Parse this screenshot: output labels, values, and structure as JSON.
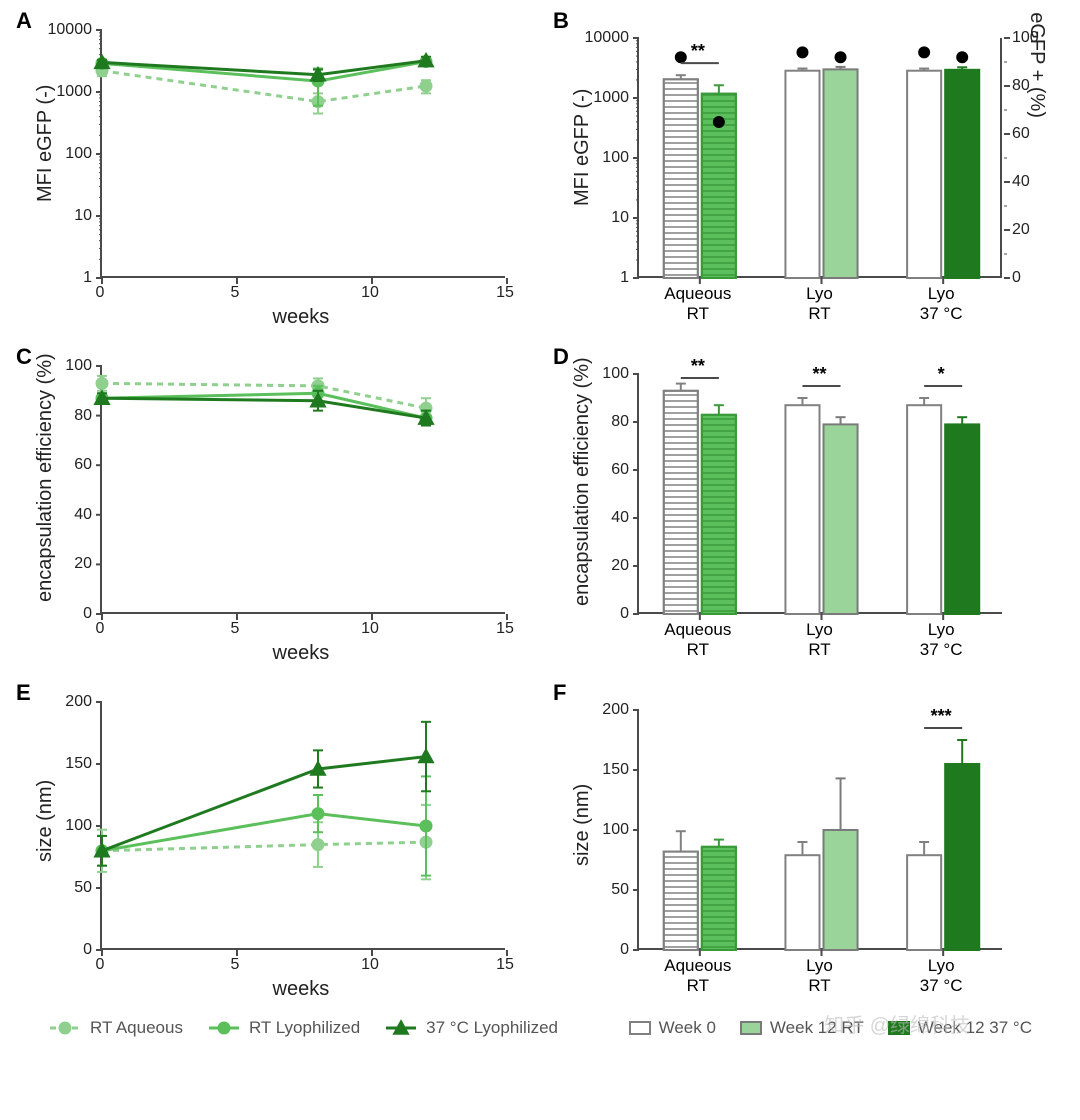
{
  "meta": {
    "background_color": "#ffffff",
    "axis_color": "#4a4a4a",
    "font_family": "Arial",
    "panel_label_fontsize": 22,
    "axis_label_fontsize": 20,
    "tick_fontsize": 16
  },
  "colors": {
    "rt_aqueous": "#8fd08f",
    "rt_lyophilized": "#5bbf5b",
    "lyo_37c": "#1f7a1f",
    "week0_outline": "#808080",
    "bar_border": "#7a7a7a"
  },
  "line_legend": {
    "items": [
      {
        "label": "RT Aqueous",
        "color": "#8fd08f",
        "marker": "circle",
        "dash": "6,5"
      },
      {
        "label": "RT Lyophilized",
        "color": "#5bbf5b",
        "marker": "circle",
        "dash": ""
      },
      {
        "label": "37 °C Lyophilized",
        "color": "#1f7a1f",
        "marker": "triangle",
        "dash": ""
      }
    ]
  },
  "bar_legend": {
    "items": [
      {
        "label": "Week 0",
        "fill": "none",
        "outline": "#808080",
        "hatched": false
      },
      {
        "label": "Week 12 RT",
        "fill": "#9bd49b",
        "outline": "#7a7a7a",
        "hatched": false
      },
      {
        "label": "Week 12 37 °C",
        "fill": "#1f7a1f",
        "outline": "#1f7a1f",
        "hatched": false
      }
    ]
  },
  "panelA": {
    "label": "A",
    "type": "line",
    "xlabel": "weeks",
    "ylabel": "MFI eGFP (-)",
    "xlim": [
      0,
      15
    ],
    "xticks": [
      0,
      5,
      10,
      15
    ],
    "yscale": "log",
    "ylim": [
      1,
      10000
    ],
    "yticks": [
      1,
      10,
      100,
      1000,
      10000
    ],
    "series": [
      {
        "name": "RT Aqueous",
        "color": "#8fd08f",
        "marker": "circle",
        "dash": "6,5",
        "x": [
          0,
          8,
          12
        ],
        "y": [
          2200,
          700,
          1250
        ],
        "err": [
          400,
          250,
          300
        ]
      },
      {
        "name": "RT Lyophilized",
        "color": "#5bbf5b",
        "marker": "circle",
        "dash": "",
        "x": [
          0,
          8,
          12
        ],
        "y": [
          2900,
          1500,
          3100
        ],
        "err": [
          350,
          900,
          400
        ]
      },
      {
        "name": "37 °C Lyophilized",
        "color": "#1f7a1f",
        "marker": "triangle",
        "dash": "",
        "x": [
          0,
          8,
          12
        ],
        "y": [
          3000,
          1900,
          3200
        ],
        "err": [
          300,
          400,
          500
        ]
      }
    ]
  },
  "panelB": {
    "label": "B",
    "type": "bar",
    "ylabel": "MFI eGFP (-)",
    "ylabel2": "eGFP + (%)",
    "yscale": "log",
    "ylim": [
      1,
      10000
    ],
    "yticks": [
      1,
      10,
      100,
      1000,
      10000
    ],
    "y2lim": [
      0,
      100
    ],
    "y2ticks": [
      0,
      20,
      40,
      60,
      80,
      100
    ],
    "y2_minor_step": 10,
    "groups": [
      "Aqueous\nRT",
      "Lyo\nRT",
      "Lyo\n37 °C"
    ],
    "bars_per_group": [
      [
        {
          "key": "week0",
          "fill": "none",
          "outline": "#808080",
          "hatched": true,
          "value": 2050,
          "err": 350
        },
        {
          "key": "aq12",
          "fill": "#5bbf5b",
          "outline": "#3a9a3a",
          "hatched": true,
          "value": 1180,
          "err": 450
        }
      ],
      [
        {
          "key": "week0",
          "fill": "none",
          "outline": "#808080",
          "hatched": false,
          "value": 2850,
          "err": 250
        },
        {
          "key": "rt12",
          "fill": "#9bd49b",
          "outline": "#7a7a7a",
          "hatched": false,
          "value": 3000,
          "err": 300
        }
      ],
      [
        {
          "key": "week0",
          "fill": "none",
          "outline": "#808080",
          "hatched": false,
          "value": 2850,
          "err": 250
        },
        {
          "key": "3712",
          "fill": "#1f7a1f",
          "outline": "#1f7a1f",
          "hatched": false,
          "value": 2950,
          "err": 300
        }
      ]
    ],
    "dots_pct": [
      [
        92,
        65
      ],
      [
        94,
        92
      ],
      [
        94,
        92
      ]
    ],
    "dot_color": "#000000",
    "significance": [
      {
        "group": 0,
        "label": "**"
      }
    ]
  },
  "panelC": {
    "label": "C",
    "type": "line",
    "xlabel": "weeks",
    "ylabel": "encapsulation efficiency (%)",
    "xlim": [
      0,
      15
    ],
    "xticks": [
      0,
      5,
      10,
      15
    ],
    "ylim": [
      0,
      100
    ],
    "yticks": [
      0,
      20,
      40,
      60,
      80,
      100
    ],
    "series": [
      {
        "name": "RT Aqueous",
        "color": "#8fd08f",
        "marker": "circle",
        "dash": "6,5",
        "x": [
          0,
          8,
          12
        ],
        "y": [
          93,
          92,
          83
        ],
        "err": [
          3,
          3,
          4
        ]
      },
      {
        "name": "RT Lyophilized",
        "color": "#5bbf5b",
        "marker": "circle",
        "dash": "",
        "x": [
          0,
          8,
          12
        ],
        "y": [
          87,
          89,
          79
        ],
        "err": [
          2,
          3,
          3
        ]
      },
      {
        "name": "37 °C Lyophilized",
        "color": "#1f7a1f",
        "marker": "triangle",
        "dash": "",
        "x": [
          0,
          8,
          12
        ],
        "y": [
          87,
          86,
          79
        ],
        "err": [
          2,
          4,
          3
        ]
      }
    ]
  },
  "panelD": {
    "label": "D",
    "type": "bar",
    "ylabel": "encapsulation efficiency (%)",
    "ylim": [
      0,
      100
    ],
    "yticks": [
      0,
      20,
      40,
      60,
      80,
      100
    ],
    "groups": [
      "Aqueous\nRT",
      "Lyo\nRT",
      "Lyo\n37 °C"
    ],
    "bars_per_group": [
      [
        {
          "fill": "none",
          "outline": "#808080",
          "hatched": true,
          "value": 93,
          "err": 3
        },
        {
          "fill": "#5bbf5b",
          "outline": "#3a9a3a",
          "hatched": true,
          "value": 83,
          "err": 4
        }
      ],
      [
        {
          "fill": "none",
          "outline": "#808080",
          "hatched": false,
          "value": 87,
          "err": 3
        },
        {
          "fill": "#9bd49b",
          "outline": "#7a7a7a",
          "hatched": false,
          "value": 79,
          "err": 3
        }
      ],
      [
        {
          "fill": "none",
          "outline": "#808080",
          "hatched": false,
          "value": 87,
          "err": 3
        },
        {
          "fill": "#1f7a1f",
          "outline": "#1f7a1f",
          "hatched": false,
          "value": 79,
          "err": 3
        }
      ]
    ],
    "significance": [
      {
        "group": 0,
        "label": "**"
      },
      {
        "group": 1,
        "label": "**"
      },
      {
        "group": 2,
        "label": "*"
      }
    ]
  },
  "panelE": {
    "label": "E",
    "type": "line",
    "xlabel": "weeks",
    "ylabel": "size (nm)",
    "xlim": [
      0,
      15
    ],
    "xticks": [
      0,
      5,
      10,
      15
    ],
    "ylim": [
      0,
      200
    ],
    "yticks": [
      0,
      50,
      100,
      150,
      200
    ],
    "series": [
      {
        "name": "RT Aqueous",
        "color": "#8fd08f",
        "marker": "circle",
        "dash": "6,5",
        "x": [
          0,
          8,
          12
        ],
        "y": [
          80,
          85,
          87
        ],
        "err": [
          17,
          18,
          30
        ]
      },
      {
        "name": "RT Lyophilized",
        "color": "#5bbf5b",
        "marker": "circle",
        "dash": "",
        "x": [
          0,
          8,
          12
        ],
        "y": [
          80,
          110,
          100
        ],
        "err": [
          12,
          15,
          40
        ]
      },
      {
        "name": "37 °C Lyophilized",
        "color": "#1f7a1f",
        "marker": "triangle",
        "dash": "",
        "x": [
          0,
          8,
          12
        ],
        "y": [
          80,
          146,
          156
        ],
        "err": [
          12,
          15,
          28
        ]
      }
    ]
  },
  "panelF": {
    "label": "F",
    "type": "bar",
    "ylabel": "size (nm)",
    "ylim": [
      0,
      200
    ],
    "yticks": [
      0,
      50,
      100,
      150,
      200
    ],
    "groups": [
      "Aqueous\nRT",
      "Lyo\nRT",
      "Lyo\n37 °C"
    ],
    "bars_per_group": [
      [
        {
          "fill": "none",
          "outline": "#808080",
          "hatched": true,
          "value": 82,
          "err": 17
        },
        {
          "fill": "#5bbf5b",
          "outline": "#3a9a3a",
          "hatched": true,
          "value": 86,
          "err": 6
        }
      ],
      [
        {
          "fill": "none",
          "outline": "#808080",
          "hatched": false,
          "value": 79,
          "err": 11
        },
        {
          "fill": "#9bd49b",
          "outline": "#7a7a7a",
          "hatched": false,
          "value": 100,
          "err": 43
        }
      ],
      [
        {
          "fill": "none",
          "outline": "#808080",
          "hatched": false,
          "value": 79,
          "err": 11
        },
        {
          "fill": "#1f7a1f",
          "outline": "#1f7a1f",
          "hatched": false,
          "value": 155,
          "err": 20
        }
      ]
    ],
    "significance": [
      {
        "group": 2,
        "label": "***"
      }
    ]
  },
  "watermark": "知乎 @绿绵科技"
}
